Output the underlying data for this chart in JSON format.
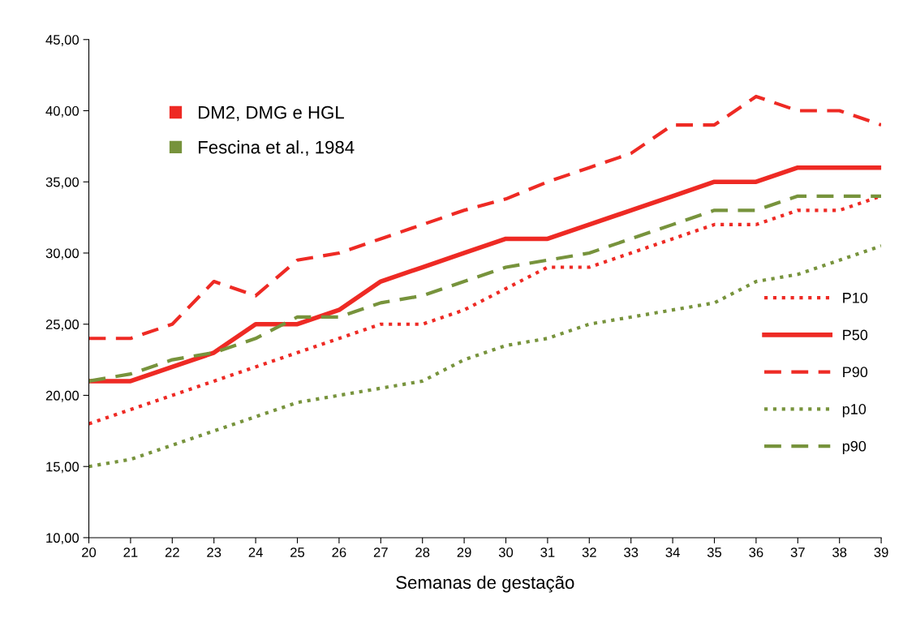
{
  "chart_data": {
    "type": "line",
    "xlabel": "Semanas de gestação",
    "x": [
      20,
      21,
      22,
      23,
      24,
      25,
      26,
      27,
      28,
      29,
      30,
      31,
      32,
      33,
      34,
      35,
      36,
      37,
      38,
      39
    ],
    "xlim": [
      20,
      39
    ],
    "xticks": [
      20,
      21,
      22,
      23,
      24,
      25,
      26,
      27,
      28,
      29,
      30,
      31,
      32,
      33,
      34,
      35,
      36,
      37,
      38,
      39
    ],
    "ylim": [
      10,
      45
    ],
    "yticks": [
      {
        "value": 10,
        "label": "10,00"
      },
      {
        "value": 15,
        "label": "15,00"
      },
      {
        "value": 20,
        "label": "20,00"
      },
      {
        "value": 25,
        "label": "25,00"
      },
      {
        "value": 30,
        "label": "30,00"
      },
      {
        "value": 35,
        "label": "35,00"
      },
      {
        "value": 40,
        "label": "40,00"
      },
      {
        "value": 45,
        "label": "45,00"
      }
    ],
    "grid": false,
    "legend": "right",
    "marker": "none",
    "annotations": [
      "DM2, DMG e HGL",
      "Fescina et al., 1984"
    ],
    "series": [
      {
        "name": "P10",
        "color": "#ee2a24",
        "line_style": "dotted",
        "values": [
          18,
          19,
          20,
          21,
          22,
          23,
          24,
          25,
          25,
          26,
          27.5,
          29,
          29,
          30,
          31,
          32,
          32,
          33,
          33,
          34
        ]
      },
      {
        "name": "P50",
        "color": "#ee2a24",
        "line_style": "solid",
        "values": [
          21,
          21,
          22,
          23,
          25,
          25,
          26,
          28,
          29,
          30,
          31,
          31,
          32,
          33,
          34,
          35,
          35,
          36,
          36,
          36
        ]
      },
      {
        "name": "P90",
        "color": "#ee2a24",
        "line_style": "dashed",
        "values": [
          24,
          24,
          25,
          28,
          27,
          29.5,
          30,
          31,
          32,
          33,
          33.8,
          35,
          36,
          37,
          39,
          39,
          41,
          40,
          40,
          39
        ]
      },
      {
        "name": "p10",
        "color": "#77933c",
        "line_style": "dotted",
        "values": [
          15,
          15.5,
          16.5,
          17.5,
          18.5,
          19.5,
          20,
          20.5,
          21,
          22.5,
          23.5,
          24,
          25,
          25.5,
          26,
          26.5,
          28,
          28.5,
          29.5,
          30.5
        ]
      },
      {
        "name": "p90",
        "color": "#77933c",
        "line_style": "dashed",
        "values": [
          21,
          21.5,
          22.5,
          23,
          24,
          25.5,
          25.5,
          26.5,
          27,
          28,
          29,
          29.5,
          30,
          31,
          32,
          33,
          33,
          34,
          34,
          34
        ]
      }
    ]
  }
}
